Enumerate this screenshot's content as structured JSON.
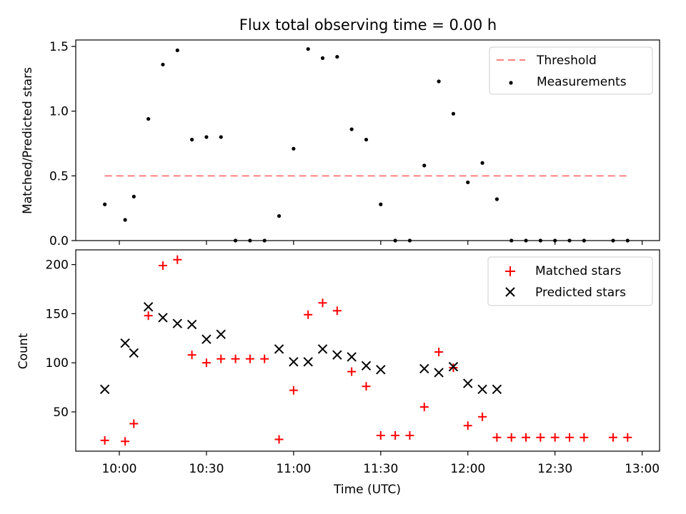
{
  "title": "Flux total observing time = 0.00 h",
  "chart_data": [
    {
      "type": "scatter",
      "panel": "top",
      "ylabel": "Matched/Predicted stars",
      "ylim": [
        0.0,
        1.55
      ],
      "yticks": [
        0.0,
        0.5,
        1.0,
        1.5
      ],
      "ytick_labels": [
        "0.0",
        "0.5",
        "1.0",
        "1.5"
      ],
      "threshold": {
        "name": "Threshold",
        "value": 0.5,
        "x_start": "09:55",
        "x_end": "12:55",
        "color": "#ff7f7f",
        "style": "dashed"
      },
      "series": [
        {
          "name": "Measurements",
          "color": "#000000",
          "marker": "dot",
          "x": [
            "09:55",
            "10:02",
            "10:05",
            "10:10",
            "10:15",
            "10:20",
            "10:25",
            "10:30",
            "10:35",
            "10:40",
            "10:45",
            "10:50",
            "10:55",
            "11:00",
            "11:05",
            "11:10",
            "11:15",
            "11:20",
            "11:25",
            "11:30",
            "11:35",
            "11:40",
            "11:45",
            "11:50",
            "11:55",
            "12:00",
            "12:05",
            "12:10",
            "12:15",
            "12:20",
            "12:25",
            "12:30",
            "12:35",
            "12:40",
            "12:50",
            "12:55"
          ],
          "y": [
            0.28,
            0.16,
            0.34,
            0.94,
            1.36,
            1.47,
            0.78,
            0.8,
            0.8,
            0.0,
            0.0,
            0.0,
            0.19,
            0.71,
            1.48,
            1.41,
            1.42,
            0.86,
            0.78,
            0.28,
            0.0,
            0.0,
            0.58,
            1.23,
            0.98,
            0.45,
            0.6,
            0.32,
            0.0,
            0.0,
            0.0,
            0.0,
            0.0,
            0.0,
            0.0,
            0.0
          ]
        }
      ],
      "legend": {
        "position": "top-right",
        "entries": [
          "Threshold",
          "Measurements"
        ]
      }
    },
    {
      "type": "scatter",
      "panel": "bottom",
      "xlabel": "Time (UTC)",
      "ylabel": "Count",
      "ylim": [
        10,
        215
      ],
      "yticks": [
        50,
        100,
        150,
        200
      ],
      "ytick_labels": [
        "50",
        "100",
        "150",
        "200"
      ],
      "xlim": [
        "09:45",
        "13:06"
      ],
      "xticks": [
        "10:00",
        "10:30",
        "11:00",
        "11:30",
        "12:00",
        "12:30",
        "13:00"
      ],
      "xtick_labels": [
        "10:00",
        "10:30",
        "11:00",
        "11:30",
        "12:00",
        "12:30",
        "13:00"
      ],
      "series": [
        {
          "name": "Matched stars",
          "color": "#ff0000",
          "marker": "plus",
          "points": [
            [
              "09:55",
              21
            ],
            [
              "10:02",
              20
            ],
            [
              "10:05",
              38
            ],
            [
              "10:10",
              148
            ],
            [
              "10:15",
              199
            ],
            [
              "10:20",
              205
            ],
            [
              "10:25",
              108
            ],
            [
              "10:30",
              100
            ],
            [
              "10:35",
              104
            ],
            [
              "10:40",
              104
            ],
            [
              "10:45",
              104
            ],
            [
              "10:50",
              104
            ],
            [
              "10:55",
              22
            ],
            [
              "11:00",
              72
            ],
            [
              "11:05",
              149
            ],
            [
              "11:10",
              161
            ],
            [
              "11:15",
              153
            ],
            [
              "11:20",
              91
            ],
            [
              "11:25",
              76
            ],
            [
              "11:30",
              26
            ],
            [
              "11:35",
              26
            ],
            [
              "11:40",
              26
            ],
            [
              "11:45",
              55
            ],
            [
              "11:50",
              111
            ],
            [
              "11:55",
              95
            ],
            [
              "12:00",
              36
            ],
            [
              "12:05",
              45
            ],
            [
              "12:10",
              24
            ],
            [
              "12:15",
              24
            ],
            [
              "12:20",
              24
            ],
            [
              "12:25",
              24
            ],
            [
              "12:30",
              24
            ],
            [
              "12:35",
              24
            ],
            [
              "12:40",
              24
            ],
            [
              "12:50",
              24
            ],
            [
              "12:55",
              24
            ]
          ]
        },
        {
          "name": "Predicted stars",
          "color": "#000000",
          "marker": "x",
          "points": [
            [
              "09:55",
              73
            ],
            [
              "10:02",
              120
            ],
            [
              "10:05",
              110
            ],
            [
              "10:10",
              157
            ],
            [
              "10:15",
              146
            ],
            [
              "10:20",
              140
            ],
            [
              "10:25",
              139
            ],
            [
              "10:30",
              124
            ],
            [
              "10:35",
              129
            ],
            [
              "10:55",
              114
            ],
            [
              "11:00",
              101
            ],
            [
              "11:05",
              101
            ],
            [
              "11:10",
              114
            ],
            [
              "11:15",
              108
            ],
            [
              "11:20",
              106
            ],
            [
              "11:25",
              97
            ],
            [
              "11:30",
              93
            ],
            [
              "11:45",
              94
            ],
            [
              "11:50",
              90
            ],
            [
              "11:55",
              96
            ],
            [
              "12:00",
              79
            ],
            [
              "12:05",
              73
            ],
            [
              "12:10",
              73
            ]
          ]
        }
      ],
      "legend": {
        "position": "top-right",
        "entries": [
          "Matched stars",
          "Predicted stars"
        ]
      }
    }
  ]
}
